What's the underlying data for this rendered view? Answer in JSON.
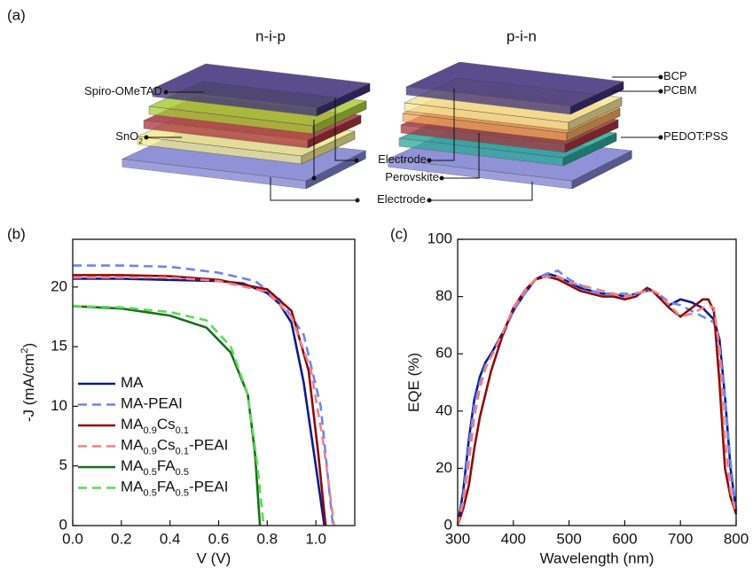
{
  "diagram": {
    "panel_label": "(a)",
    "left_title": "n-i-p",
    "right_title": "p-i-n",
    "labels": [
      "Spiro-OMeTAD",
      "SnO2",
      "Electrode",
      "Perovskite",
      "Electrode",
      "BCP",
      "PCBM",
      "PEDOT:PSS"
    ]
  },
  "chart_data": [
    {
      "type": "line",
      "panel_label": "(b)",
      "xlabel": "V (V)",
      "ylabel": "-J (mA/cm2)",
      "xlim": [
        0,
        1.16
      ],
      "ylim": [
        0,
        24
      ],
      "xticks": [
        {
          "value": 0,
          "label": "0.0"
        },
        0.2,
        0.4,
        0.6,
        0.8,
        {
          "value": 1,
          "label": "1.0"
        }
      ],
      "yticks": [
        0,
        5,
        10,
        15,
        20
      ],
      "legend": "lower-left",
      "series": [
        {
          "name": "MA",
          "color": "#0d1a8e",
          "dash": false,
          "x": [
            0,
            0.2,
            0.4,
            0.6,
            0.7,
            0.8,
            0.85,
            0.9,
            0.95,
            1.0,
            1.035
          ],
          "values": [
            20.7,
            20.7,
            20.6,
            20.5,
            20.3,
            19.5,
            18.6,
            17,
            12,
            5,
            0
          ]
        },
        {
          "name": "MA-PEAI",
          "color": "#6a86f2",
          "dash": true,
          "x": [
            0,
            0.2,
            0.4,
            0.6,
            0.75,
            0.85,
            0.95,
            1.02,
            1.05,
            1.07
          ],
          "values": [
            21.8,
            21.8,
            21.7,
            21.2,
            20.5,
            19,
            16,
            10,
            4,
            0
          ]
        },
        {
          "name": "MA0.9Cs0.1",
          "color": "#8c0b0b",
          "dash": false,
          "x": [
            0,
            0.2,
            0.4,
            0.6,
            0.8,
            0.9,
            0.97,
            1.01,
            1.04
          ],
          "values": [
            21,
            21,
            20.9,
            20.6,
            19.8,
            18,
            13,
            6,
            0
          ]
        },
        {
          "name": "MA0.9Cs0.1-PEAI",
          "color": "#f28080",
          "dash": true,
          "x": [
            0,
            0.2,
            0.4,
            0.6,
            0.8,
            0.9,
            0.98,
            1.03,
            1.075
          ],
          "values": [
            20.8,
            20.8,
            20.8,
            20.5,
            19.6,
            17.5,
            13,
            7,
            0
          ]
        },
        {
          "name": "MA0.5FA0.5",
          "color": "#1b6e1b",
          "dash": false,
          "x": [
            0,
            0.2,
            0.4,
            0.55,
            0.65,
            0.72,
            0.75,
            0.77
          ],
          "values": [
            18.4,
            18.2,
            17.6,
            16.6,
            14.5,
            11,
            6,
            0
          ]
        },
        {
          "name": "MA0.5FA0.5-PEAI",
          "color": "#55dd55",
          "dash": true,
          "x": [
            0,
            0.2,
            0.4,
            0.55,
            0.65,
            0.72,
            0.76,
            0.785
          ],
          "values": [
            18.4,
            18.3,
            17.9,
            17.2,
            15,
            11,
            5,
            0
          ]
        }
      ]
    },
    {
      "type": "line",
      "panel_label": "(c)",
      "xlabel": "Wavelength (nm)",
      "ylabel": "EQE (%)",
      "xlim": [
        300,
        800
      ],
      "ylim": [
        0,
        100
      ],
      "xticks": [
        300,
        400,
        500,
        600,
        700,
        800
      ],
      "yticks": [
        0,
        20,
        40,
        60,
        80,
        100
      ],
      "series": [
        {
          "color": "#0d1a8e",
          "dash": false,
          "x": [
            300,
            310,
            320,
            330,
            340,
            350,
            360,
            380,
            400,
            420,
            440,
            460,
            480,
            500,
            520,
            540,
            560,
            580,
            600,
            620,
            640,
            650,
            660,
            680,
            700,
            720,
            740,
            750,
            760,
            770,
            780,
            790,
            800
          ],
          "values": [
            0,
            12,
            30,
            44,
            52,
            57,
            60,
            67,
            75,
            81,
            86,
            88,
            87,
            85,
            83,
            82,
            81,
            81,
            80,
            81,
            82,
            82,
            80,
            77,
            79,
            78,
            76,
            74,
            72,
            65,
            45,
            20,
            5
          ]
        },
        {
          "color": "#6a86f2",
          "dash": true,
          "x": [
            300,
            310,
            320,
            330,
            340,
            350,
            360,
            380,
            400,
            420,
            440,
            460,
            480,
            500,
            520,
            540,
            560,
            580,
            600,
            620,
            640,
            650,
            660,
            680,
            700,
            720,
            740,
            750,
            760,
            770,
            780,
            790,
            800
          ],
          "values": [
            0,
            10,
            28,
            42,
            50,
            56,
            59,
            66,
            75,
            81,
            86,
            88,
            89,
            86,
            84,
            82,
            81,
            81,
            81,
            81,
            82,
            82,
            81,
            78,
            77,
            75,
            73,
            72,
            71,
            62,
            45,
            22,
            5
          ]
        },
        {
          "color": "#8c0b0b",
          "dash": false,
          "x": [
            300,
            310,
            320,
            330,
            340,
            350,
            360,
            380,
            400,
            420,
            440,
            460,
            480,
            500,
            520,
            540,
            560,
            580,
            600,
            620,
            640,
            650,
            660,
            680,
            700,
            720,
            740,
            750,
            760,
            770,
            780,
            790,
            800
          ],
          "values": [
            0,
            6,
            14,
            27,
            38,
            46,
            54,
            66,
            76,
            82,
            86,
            87,
            86,
            84,
            82,
            81,
            80,
            80,
            79,
            80,
            83,
            82,
            80,
            76,
            73,
            76,
            79,
            79,
            75,
            50,
            20,
            10,
            4
          ]
        },
        {
          "color": "#f28080",
          "dash": true,
          "x": [
            300,
            310,
            320,
            330,
            340,
            350,
            360,
            380,
            400,
            420,
            440,
            460,
            480,
            500,
            520,
            540,
            560,
            580,
            600,
            620,
            640,
            650,
            660,
            680,
            700,
            720,
            740,
            750,
            760,
            770,
            780,
            790,
            800
          ],
          "values": [
            0,
            8,
            22,
            38,
            48,
            55,
            59,
            67,
            76,
            82,
            86,
            87,
            87,
            85,
            84,
            83,
            82,
            81,
            80,
            81,
            82,
            82,
            81,
            77,
            73,
            74,
            76,
            77,
            76,
            62,
            30,
            12,
            4
          ]
        }
      ]
    }
  ]
}
